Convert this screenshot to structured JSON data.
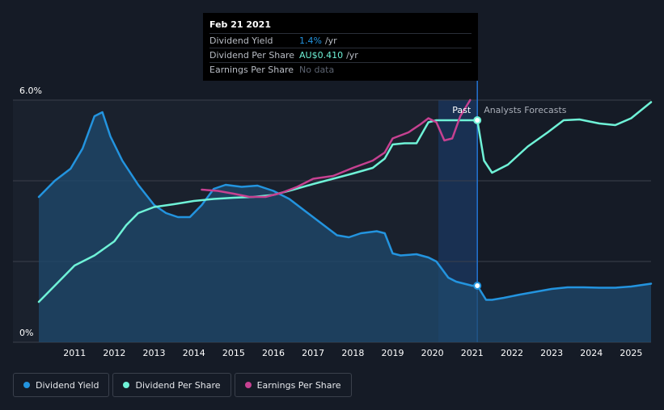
{
  "tooltip": {
    "date": "Feb 21 2021",
    "rows": [
      {
        "name": "Dividend Yield",
        "value": "1.4%",
        "unit": "/yr"
      },
      {
        "name": "Dividend Per Share",
        "value": "AU$0.410",
        "unit": "/yr"
      },
      {
        "name": "Earnings Per Share",
        "value": "No data",
        "unit": ""
      }
    ]
  },
  "legend": [
    {
      "label": "Dividend Yield",
      "color": "#2394df"
    },
    {
      "label": "Dividend Per Share",
      "color": "#6ff2d7"
    },
    {
      "label": "Earnings Per Share",
      "color": "#c64191"
    }
  ],
  "chart_data": {
    "type": "line",
    "title": "",
    "xlabel": "",
    "ylabel": "",
    "xlim": [
      2010.1,
      2025.5
    ],
    "ylim": [
      0,
      6.0
    ],
    "y_tick_labels": [
      {
        "value": 6.0,
        "label": "6.0%"
      },
      {
        "value": 0,
        "label": "0%"
      }
    ],
    "x_ticks": [
      2011,
      2012,
      2013,
      2014,
      2015,
      2016,
      2017,
      2018,
      2019,
      2020,
      2021,
      2022,
      2023,
      2024,
      2025
    ],
    "past_label": "Past",
    "forecast_label": "Analysts Forecasts",
    "divider_x": 2021.13,
    "highlight_start": 2020.15,
    "series": [
      {
        "name": "Dividend Yield",
        "color": "#2394df",
        "area": true,
        "points": [
          [
            2010.1,
            3.6
          ],
          [
            2010.5,
            4.0
          ],
          [
            2010.9,
            4.3
          ],
          [
            2011.2,
            4.8
          ],
          [
            2011.5,
            5.6
          ],
          [
            2011.7,
            5.7
          ],
          [
            2011.9,
            5.1
          ],
          [
            2012.2,
            4.5
          ],
          [
            2012.6,
            3.9
          ],
          [
            2013.0,
            3.4
          ],
          [
            2013.3,
            3.2
          ],
          [
            2013.6,
            3.1
          ],
          [
            2013.9,
            3.1
          ],
          [
            2014.2,
            3.4
          ],
          [
            2014.5,
            3.8
          ],
          [
            2014.8,
            3.9
          ],
          [
            2015.2,
            3.85
          ],
          [
            2015.6,
            3.88
          ],
          [
            2016.0,
            3.75
          ],
          [
            2016.4,
            3.55
          ],
          [
            2016.8,
            3.25
          ],
          [
            2017.2,
            2.95
          ],
          [
            2017.6,
            2.65
          ],
          [
            2017.9,
            2.6
          ],
          [
            2018.2,
            2.7
          ],
          [
            2018.6,
            2.75
          ],
          [
            2018.8,
            2.7
          ],
          [
            2019.0,
            2.2
          ],
          [
            2019.2,
            2.15
          ],
          [
            2019.6,
            2.18
          ],
          [
            2019.9,
            2.1
          ],
          [
            2020.1,
            2.0
          ],
          [
            2020.4,
            1.6
          ],
          [
            2020.6,
            1.5
          ],
          [
            2021.0,
            1.4
          ],
          [
            2021.13,
            1.4
          ],
          [
            2021.35,
            1.05
          ],
          [
            2021.5,
            1.05
          ],
          [
            2021.8,
            1.1
          ],
          [
            2022.2,
            1.18
          ],
          [
            2022.6,
            1.25
          ],
          [
            2023.0,
            1.32
          ],
          [
            2023.4,
            1.36
          ],
          [
            2023.8,
            1.36
          ],
          [
            2024.2,
            1.35
          ],
          [
            2024.6,
            1.35
          ],
          [
            2025.0,
            1.38
          ],
          [
            2025.5,
            1.45
          ]
        ]
      },
      {
        "name": "Dividend Per Share",
        "color": "#6ff2d7",
        "area": false,
        "points": [
          [
            2010.1,
            1.0
          ],
          [
            2010.6,
            1.5
          ],
          [
            2011.0,
            1.9
          ],
          [
            2011.5,
            2.15
          ],
          [
            2012.0,
            2.5
          ],
          [
            2012.3,
            2.9
          ],
          [
            2012.6,
            3.2
          ],
          [
            2013.0,
            3.35
          ],
          [
            2013.5,
            3.42
          ],
          [
            2014.0,
            3.5
          ],
          [
            2014.5,
            3.55
          ],
          [
            2015.0,
            3.58
          ],
          [
            2015.5,
            3.6
          ],
          [
            2016.0,
            3.65
          ],
          [
            2016.5,
            3.78
          ],
          [
            2017.0,
            3.92
          ],
          [
            2017.5,
            4.05
          ],
          [
            2018.0,
            4.18
          ],
          [
            2018.5,
            4.32
          ],
          [
            2018.8,
            4.55
          ],
          [
            2019.0,
            4.9
          ],
          [
            2019.3,
            4.93
          ],
          [
            2019.6,
            4.93
          ],
          [
            2019.9,
            5.45
          ],
          [
            2020.1,
            5.5
          ],
          [
            2020.5,
            5.5
          ],
          [
            2021.0,
            5.5
          ],
          [
            2021.13,
            5.5
          ],
          [
            2021.3,
            4.5
          ],
          [
            2021.5,
            4.2
          ],
          [
            2021.9,
            4.4
          ],
          [
            2022.4,
            4.85
          ],
          [
            2022.9,
            5.2
          ],
          [
            2023.3,
            5.5
          ],
          [
            2023.7,
            5.52
          ],
          [
            2024.2,
            5.42
          ],
          [
            2024.6,
            5.38
          ],
          [
            2025.0,
            5.55
          ],
          [
            2025.5,
            5.95
          ]
        ]
      },
      {
        "name": "Earnings Per Share",
        "color": "#c64191",
        "area": false,
        "points": [
          [
            2014.2,
            3.78
          ],
          [
            2014.6,
            3.75
          ],
          [
            2015.0,
            3.68
          ],
          [
            2015.4,
            3.6
          ],
          [
            2015.8,
            3.6
          ],
          [
            2016.2,
            3.7
          ],
          [
            2016.6,
            3.85
          ],
          [
            2017.0,
            4.05
          ],
          [
            2017.5,
            4.12
          ],
          [
            2018.0,
            4.32
          ],
          [
            2018.5,
            4.5
          ],
          [
            2018.8,
            4.7
          ],
          [
            2019.0,
            5.05
          ],
          [
            2019.4,
            5.2
          ],
          [
            2019.7,
            5.4
          ],
          [
            2019.9,
            5.55
          ],
          [
            2020.1,
            5.45
          ],
          [
            2020.3,
            5.0
          ],
          [
            2020.5,
            5.05
          ],
          [
            2020.7,
            5.6
          ],
          [
            2020.95,
            6.0
          ]
        ]
      }
    ]
  }
}
